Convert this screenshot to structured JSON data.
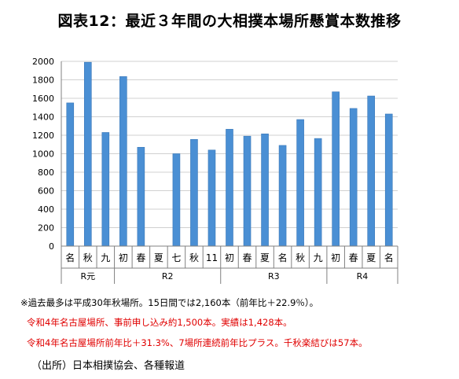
{
  "title": "図表12：最近３年間の大相撲本場所懸賞本数推移",
  "notes": {
    "line1": "※過去最多は平成30年秋場所。15日間では2,160本（前年比＋22.9％）。",
    "line2": "令和4年名古屋場所、事前申し込み約1,500本。実績は1,428本。",
    "line3": "令和4年名古屋場所前年比＋31.3%、7場所連続前年比プラス。千秋楽結びは57本。",
    "source": "（出所）日本相撲協会、各種報道"
  },
  "colors": {
    "bar": "#4a8fd4",
    "bar_edge": "#3a78b8",
    "grid": "#d0d0d0",
    "axis": "#808080"
  },
  "chart_data": {
    "type": "bar",
    "ylim": [
      0,
      2000
    ],
    "yticks": [
      0,
      200,
      400,
      600,
      800,
      1000,
      1200,
      1400,
      1600,
      1800,
      2000
    ],
    "grid": true,
    "categories": [
      "名",
      "秋",
      "九",
      "初",
      "春",
      "夏",
      "七",
      "秋",
      "11",
      "初",
      "春",
      "夏",
      "名",
      "秋",
      "九",
      "初",
      "春",
      "夏",
      "名"
    ],
    "values": [
      1550,
      1990,
      1230,
      1835,
      1070,
      null,
      1000,
      1155,
      1040,
      1265,
      1190,
      1215,
      1090,
      1370,
      1165,
      1670,
      1490,
      1625,
      1430
    ],
    "groups": [
      {
        "label": "R元",
        "count": 3
      },
      {
        "label": "R2",
        "count": 6
      },
      {
        "label": "R3",
        "count": 6
      },
      {
        "label": "R4",
        "count": 4
      }
    ]
  }
}
